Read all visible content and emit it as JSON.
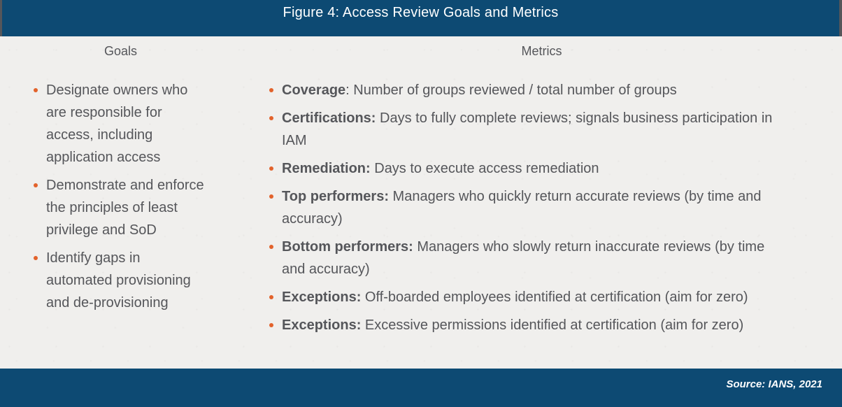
{
  "figure": {
    "title": "Figure 4: Access Review Goals and Metrics",
    "source": "Source: IANS, 2021"
  },
  "colors": {
    "bar_navy": "#0d4a73",
    "bar_edge_gray": "#55565a",
    "bullet_orange": "#e2622b",
    "body_text_gray": "#55565a",
    "background_paper": "#f0efed"
  },
  "goals": {
    "heading": "Goals",
    "items": [
      "Designate owners who are responsible for access, including application access",
      "Demonstrate and enforce the principles of least privilege and SoD",
      "Identify gaps in automated provisioning and de-provisioning"
    ]
  },
  "metrics": {
    "heading": "Metrics",
    "items": [
      {
        "label": "Coverage",
        "text": ": Number of groups reviewed / total number of groups"
      },
      {
        "label": "Certifications:",
        "text": " Days to fully complete reviews; signals business participation in IAM"
      },
      {
        "label": "Remediation:",
        "text": " Days to execute access remediation"
      },
      {
        "label": "Top performers:",
        "text": " Managers who quickly return accurate reviews (by time and accuracy)"
      },
      {
        "label": "Bottom performers:",
        "text": " Managers who slowly return inaccurate reviews (by time and accuracy)"
      },
      {
        "label": "Exceptions:",
        "text": " Off-boarded employees identified at certification (aim for zero)"
      },
      {
        "label": "Exceptions:",
        "text": " Excessive permissions identified at certification (aim for zero)"
      }
    ]
  }
}
